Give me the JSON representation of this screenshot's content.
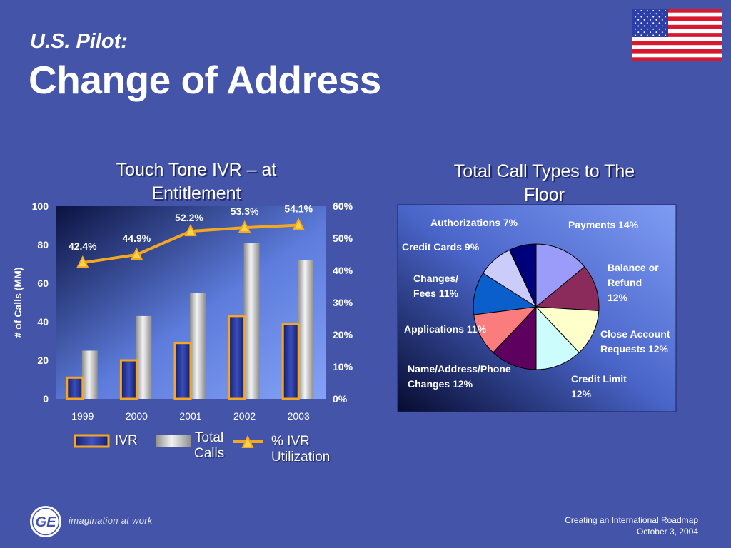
{
  "slide": {
    "subtitle": "U.S. Pilot:",
    "title": "Change of Address",
    "footer_tagline": "imagination at work",
    "footer_line1": "Creating an International Roadmap",
    "footer_line2": "October 3, 2004"
  },
  "chart_data": [
    {
      "type": "bar",
      "title": "Touch Tone IVR – at Entitlement",
      "title_lines": [
        "Touch Tone IVR – at",
        "Entitlement"
      ],
      "ylabel": "# of Calls (MM)",
      "ylim": [
        0,
        100
      ],
      "y2lim": [
        0,
        60
      ],
      "categories": [
        "1999",
        "2000",
        "2001",
        "2002",
        "2003"
      ],
      "left_ticks": [
        "0",
        "20",
        "40",
        "60",
        "80",
        "100"
      ],
      "right_ticks": [
        "0%",
        "10%",
        "20%",
        "30%",
        "40%",
        "50%",
        "60%"
      ],
      "series": [
        {
          "name": "IVR",
          "values": [
            11,
            20,
            29,
            43,
            39
          ],
          "color": "#1f2a8a"
        },
        {
          "name": "Total Calls",
          "values": [
            25,
            43,
            55,
            81,
            72
          ],
          "color": "#c8c8c8"
        },
        {
          "name": "% IVR Utilization",
          "type": "line",
          "axis": "right",
          "values": [
            42.4,
            44.9,
            52.2,
            53.3,
            54.1
          ],
          "color": "#f3a722"
        }
      ],
      "data_labels": [
        "42.4%",
        "44.9%",
        "52.2%",
        "53.3%",
        "54.1%"
      ],
      "legend": {
        "ivr": "IVR",
        "total_lines": [
          "Total",
          "Calls"
        ],
        "util_lines": [
          "% IVR",
          "Utilization"
        ]
      }
    },
    {
      "type": "pie",
      "title": "Total Call Types to The Floor",
      "title_lines": [
        "Total Call Types to The",
        "Floor"
      ],
      "slices": [
        {
          "label": "Payments 14%",
          "value": 14,
          "color": "#9b9bfa"
        },
        {
          "label": "Balance or Refund 12%",
          "lines": [
            "Balance or",
            "Refund",
            "12%"
          ],
          "value": 12,
          "color": "#8b2b5b"
        },
        {
          "label": "Close Account Requests 12%",
          "lines": [
            "Close Account",
            "Requests 12%"
          ],
          "value": 12,
          "color": "#ffffcc"
        },
        {
          "label": "Credit Limit 12%",
          "lines": [
            "Credit Limit",
            "12%"
          ],
          "value": 12,
          "color": "#cdfcfc"
        },
        {
          "label": "Name/Address/Phone Changes 12%",
          "lines": [
            "Name/Address/Phone",
            "Changes 12%"
          ],
          "value": 12,
          "color": "#5e005e"
        },
        {
          "label": "Applications 11%",
          "value": 11,
          "color": "#fa7c7c"
        },
        {
          "label": "Changes/ Fees 11%",
          "lines": [
            "Changes/",
            "Fees 11%"
          ],
          "value": 11,
          "color": "#0b5fcc"
        },
        {
          "label": "Credit Cards 9%",
          "value": 9,
          "color": "#ccccfa"
        },
        {
          "label": "Authorizations 7%",
          "value": 7,
          "color": "#00007a"
        }
      ]
    }
  ]
}
